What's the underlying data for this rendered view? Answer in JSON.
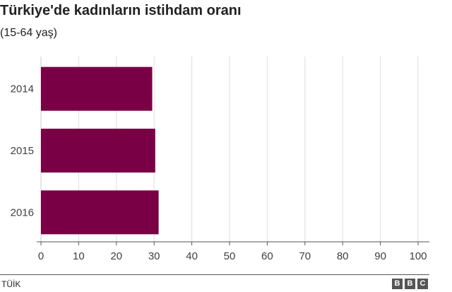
{
  "header": {
    "title": "Türkiye'de kadınların istihdam oranı",
    "subtitle": "(15-64 yaş)"
  },
  "footer": {
    "source": "TÜİK",
    "logo_letters": [
      "B",
      "B",
      "C"
    ]
  },
  "colors": {
    "bar": "#7a0046",
    "grid": "#dddddd",
    "axis": "#555555"
  },
  "chart_data": {
    "type": "bar",
    "orientation": "horizontal",
    "title": "Türkiye'de kadınların istihdam oranı",
    "subtitle": "(15-64 yaş)",
    "categories": [
      "2014",
      "2015",
      "2016"
    ],
    "values": [
      29.5,
      30.3,
      31.2
    ],
    "xlim": [
      0,
      100
    ],
    "xticks": [
      0,
      10,
      20,
      30,
      40,
      50,
      60,
      70,
      80,
      90,
      100
    ],
    "grid": true,
    "legend": "none"
  }
}
